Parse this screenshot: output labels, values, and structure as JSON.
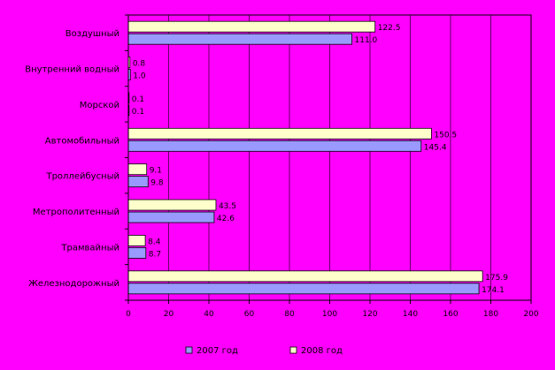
{
  "chart_data": {
    "type": "bar",
    "orientation": "horizontal",
    "categories": [
      "Воздушный",
      "Внутренний водный",
      "Морской",
      "Автомобильный",
      "Троллейбусный",
      "Метрополитенный",
      "Трамвайный",
      "Железнодорожный"
    ],
    "series": [
      {
        "name": "2007 год",
        "values_text": [
          "111.0",
          "1.0",
          "0.1",
          "145.4",
          "9.8",
          "42.6",
          "8.7",
          "174.1"
        ],
        "values": [
          111.0,
          1.0,
          0.1,
          145.4,
          9.8,
          42.6,
          8.7,
          174.1
        ],
        "color": "#9999ff"
      },
      {
        "name": "2008 год",
        "values_text": [
          "122.5",
          "0.8",
          "0.1",
          "150.5",
          "9.1",
          "43.5",
          "8.4",
          "175.9"
        ],
        "values": [
          122.5,
          0.8,
          0.1,
          150.5,
          9.1,
          43.5,
          8.4,
          175.9
        ],
        "color": "#ffffcc"
      }
    ],
    "xlim": [
      0,
      200
    ],
    "xticks": [
      "0",
      "20",
      "40",
      "60",
      "80",
      "100",
      "120",
      "140",
      "160",
      "180",
      "200"
    ],
    "grid": true,
    "legend_position": "bottom",
    "background": "#ff00ff",
    "title": "",
    "xlabel": "",
    "ylabel": ""
  }
}
